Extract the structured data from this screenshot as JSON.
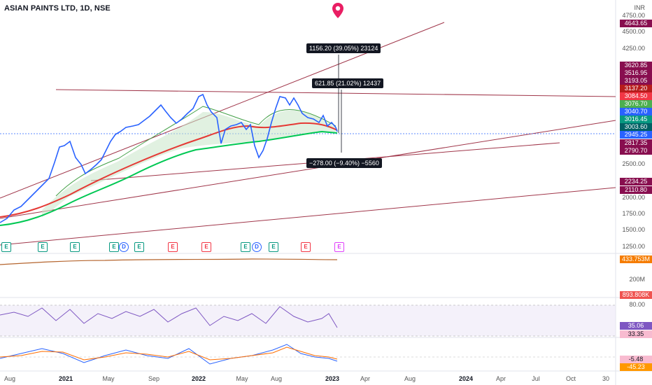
{
  "header": {
    "title": "ASIAN PAINTS LTD, 1D, NSE",
    "currency": "INR"
  },
  "price_axis": [
    "4750.00",
    "4500.00",
    "4250.00",
    "2500.00",
    "2000.00",
    "1750.00",
    "1500.00",
    "1250.00",
    "200M",
    "80.00"
  ],
  "date_axis": [
    "Aug",
    "2021",
    "May",
    "Sep",
    "2022",
    "May",
    "Aug",
    "2023",
    "Apr",
    "Aug",
    "2024",
    "Apr",
    "Jul",
    "Oct",
    "30"
  ],
  "price_tags": [
    {
      "value": "4643.65",
      "color": "#880e4f"
    },
    {
      "value": "3620.85",
      "color": "#880e4f"
    },
    {
      "value": "3516.95",
      "color": "#880e4f"
    },
    {
      "value": "3193.05",
      "color": "#880e4f"
    },
    {
      "value": "3137.20",
      "color": "#b71c1c"
    },
    {
      "value": "3084.50",
      "color": "#f23645"
    },
    {
      "value": "3076.70",
      "color": "#4caf50"
    },
    {
      "value": "3040.70",
      "color": "#2962ff"
    },
    {
      "value": "3016.45",
      "color": "#089981"
    },
    {
      "value": "3003.60",
      "color": "#006064"
    },
    {
      "value": "2945.25",
      "color": "#2962ff"
    },
    {
      "value": "2817.35",
      "color": "#880e4f"
    },
    {
      "value": "2790.70",
      "color": "#880e4f"
    },
    {
      "value": "2234.25",
      "color": "#880e4f"
    },
    {
      "value": "2110.80",
      "color": "#880e4f"
    },
    {
      "value": "433.753M",
      "color": "#f57c00"
    },
    {
      "value": "893.808K",
      "color": "#ef5350"
    },
    {
      "value": "35.06",
      "color": "#7e57c2"
    },
    {
      "value": "33.35",
      "color": "#f8bbd0"
    },
    {
      "value": "-5.48",
      "color": "#f8bbd0"
    },
    {
      "value": "-45.23",
      "color": "#ff9800"
    }
  ],
  "annotations": {
    "top": "1156.20 (39.05%) 23124",
    "middle": "621.85 (21.02%) 12437",
    "bottom": "−278.00 (−9.40%) −5560"
  },
  "event_badges": [
    "E",
    "E",
    "E",
    "E",
    "D",
    "E",
    "E",
    "E",
    "E",
    "D",
    "E",
    "E",
    "E"
  ],
  "icons": {
    "pin": "location-pin-icon"
  },
  "colors": {
    "price": "#2962ff",
    "ema_red": "#e53935",
    "ema_green": "#00c853",
    "trendline": "#a0364a",
    "rsi": "#7e57c2"
  }
}
